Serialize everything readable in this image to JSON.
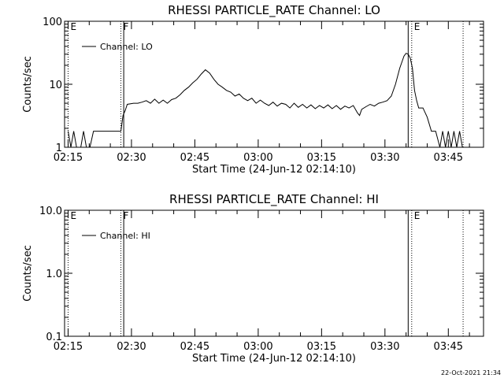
{
  "footer": {
    "timestamp": "22-Oct-2021 21:34"
  },
  "chart_data": [
    {
      "type": "line",
      "title": "RHESSI PARTICLE_RATE Channel: LO",
      "xlabel": "Start Time (24-Jun-12 02:14:10)",
      "ylabel": "Counts/sec",
      "yscale": "log",
      "ylim": [
        1,
        100
      ],
      "yticks": [
        1,
        10,
        100
      ],
      "ytick_labels": [
        "1",
        "10",
        "100"
      ],
      "xticks": [
        "02:15",
        "02:30",
        "02:45",
        "03:00",
        "03:15",
        "03:30",
        "03:45"
      ],
      "legend": {
        "entry": "Channel: LO",
        "placement": "top-left"
      },
      "markers": [
        {
          "label": "E",
          "time": "02:15",
          "style": "dotted"
        },
        {
          "label": "F",
          "time": "02:27:30",
          "style": "dotted"
        },
        {
          "label": "",
          "time": "02:28:10",
          "style": "solid"
        },
        {
          "label": "",
          "time": "03:35:30",
          "style": "solid"
        },
        {
          "label": "E",
          "time": "03:36:20",
          "style": "dotted"
        },
        {
          "label": "",
          "time": "03:48:30",
          "style": "dotted"
        }
      ],
      "series": [
        {
          "name": "Channel: LO",
          "points": [
            [
              "02:15:00",
              1.8
            ],
            [
              "02:15:40",
              1.0
            ],
            [
              "02:16:20",
              1.8
            ],
            [
              "02:17:00",
              1.0
            ],
            [
              "02:18:00",
              1.0
            ],
            [
              "02:18:40",
              1.8
            ],
            [
              "02:19:20",
              1.0
            ],
            [
              "02:20:10",
              1.0
            ],
            [
              "02:21:00",
              1.8
            ],
            [
              "02:27:30",
              1.8
            ],
            [
              "02:28:00",
              3.2
            ],
            [
              "02:28:30",
              3.8
            ],
            [
              "02:29:00",
              4.8
            ],
            [
              "02:30:30",
              5.0
            ],
            [
              "02:31:30",
              5.0
            ],
            [
              "02:32:30",
              5.2
            ],
            [
              "02:33:30",
              5.5
            ],
            [
              "02:34:30",
              5.0
            ],
            [
              "02:35:30",
              5.8
            ],
            [
              "02:36:30",
              5.0
            ],
            [
              "02:37:30",
              5.6
            ],
            [
              "02:38:30",
              5.0
            ],
            [
              "02:39:30",
              5.7
            ],
            [
              "02:40:30",
              6.0
            ],
            [
              "02:41:30",
              6.8
            ],
            [
              "02:42:30",
              8.0
            ],
            [
              "02:43:30",
              9.0
            ],
            [
              "02:44:30",
              10.5
            ],
            [
              "02:45:30",
              12.0
            ],
            [
              "02:46:30",
              14.5
            ],
            [
              "02:47:30",
              17.0
            ],
            [
              "02:48:30",
              15.0
            ],
            [
              "02:49:30",
              12.0
            ],
            [
              "02:50:30",
              10.0
            ],
            [
              "02:51:30",
              9.0
            ],
            [
              "02:52:30",
              8.0
            ],
            [
              "02:53:30",
              7.5
            ],
            [
              "02:54:30",
              6.5
            ],
            [
              "02:55:30",
              7.0
            ],
            [
              "02:56:30",
              6.0
            ],
            [
              "02:57:30",
              5.5
            ],
            [
              "02:58:30",
              6.0
            ],
            [
              "02:59:30",
              5.0
            ],
            [
              "03:00:30",
              5.6
            ],
            [
              "03:01:30",
              5.0
            ],
            [
              "03:02:30",
              4.6
            ],
            [
              "03:03:30",
              5.2
            ],
            [
              "03:04:30",
              4.5
            ],
            [
              "03:05:30",
              5.0
            ],
            [
              "03:06:30",
              4.8
            ],
            [
              "03:07:30",
              4.2
            ],
            [
              "03:08:30",
              5.0
            ],
            [
              "03:09:30",
              4.3
            ],
            [
              "03:10:30",
              4.8
            ],
            [
              "03:11:30",
              4.2
            ],
            [
              "03:12:30",
              4.7
            ],
            [
              "03:13:30",
              4.1
            ],
            [
              "03:14:30",
              4.6
            ],
            [
              "03:15:30",
              4.2
            ],
            [
              "03:16:30",
              4.7
            ],
            [
              "03:17:30",
              4.1
            ],
            [
              "03:18:30",
              4.6
            ],
            [
              "03:19:30",
              4.0
            ],
            [
              "03:20:30",
              4.5
            ],
            [
              "03:21:30",
              4.2
            ],
            [
              "03:22:30",
              4.6
            ],
            [
              "03:23:30",
              3.5
            ],
            [
              "03:24:00",
              3.2
            ],
            [
              "03:24:30",
              4.0
            ],
            [
              "03:25:30",
              4.4
            ],
            [
              "03:26:30",
              4.8
            ],
            [
              "03:27:30",
              4.5
            ],
            [
              "03:28:30",
              5.0
            ],
            [
              "03:29:30",
              5.2
            ],
            [
              "03:30:30",
              5.5
            ],
            [
              "03:31:30",
              6.5
            ],
            [
              "03:32:30",
              10.0
            ],
            [
              "03:33:30",
              18.0
            ],
            [
              "03:34:30",
              28.0
            ],
            [
              "03:35:00",
              31.0
            ],
            [
              "03:35:30",
              30.0
            ],
            [
              "03:36:00",
              26.0
            ],
            [
              "03:36:30",
              18.0
            ],
            [
              "03:37:00",
              8.0
            ],
            [
              "03:37:30",
              5.5
            ],
            [
              "03:38:00",
              4.2
            ],
            [
              "03:39:00",
              4.2
            ],
            [
              "03:40:00",
              3.0
            ],
            [
              "03:41:00",
              1.8
            ],
            [
              "03:42:00",
              1.8
            ],
            [
              "03:43:00",
              1.0
            ],
            [
              "03:43:40",
              1.8
            ],
            [
              "03:44:20",
              1.0
            ],
            [
              "03:45:00",
              1.8
            ],
            [
              "03:45:40",
              1.0
            ],
            [
              "03:46:20",
              1.8
            ],
            [
              "03:47:00",
              1.0
            ],
            [
              "03:47:40",
              1.8
            ],
            [
              "03:48:20",
              1.0
            ]
          ]
        }
      ]
    },
    {
      "type": "line",
      "title": "RHESSI PARTICLE_RATE Channel: HI",
      "xlabel": "Start Time (24-Jun-12 02:14:10)",
      "ylabel": "Counts/sec",
      "yscale": "log",
      "ylim": [
        0.1,
        10
      ],
      "yticks": [
        0.1,
        1,
        10
      ],
      "ytick_labels": [
        "0.1",
        "1.0",
        "10.0"
      ],
      "xticks": [
        "02:15",
        "02:30",
        "02:45",
        "03:00",
        "03:15",
        "03:30",
        "03:45"
      ],
      "legend": {
        "entry": "Channel: HI",
        "placement": "top-left"
      },
      "markers": [
        {
          "label": "E",
          "time": "02:15",
          "style": "dotted"
        },
        {
          "label": "F",
          "time": "02:27:30",
          "style": "dotted"
        },
        {
          "label": "",
          "time": "02:28:10",
          "style": "solid"
        },
        {
          "label": "",
          "time": "03:35:30",
          "style": "solid"
        },
        {
          "label": "E",
          "time": "03:36:20",
          "style": "dotted"
        },
        {
          "label": "",
          "time": "03:48:30",
          "style": "dotted"
        }
      ],
      "series": [
        {
          "name": "Channel: HI",
          "points": []
        }
      ]
    }
  ]
}
